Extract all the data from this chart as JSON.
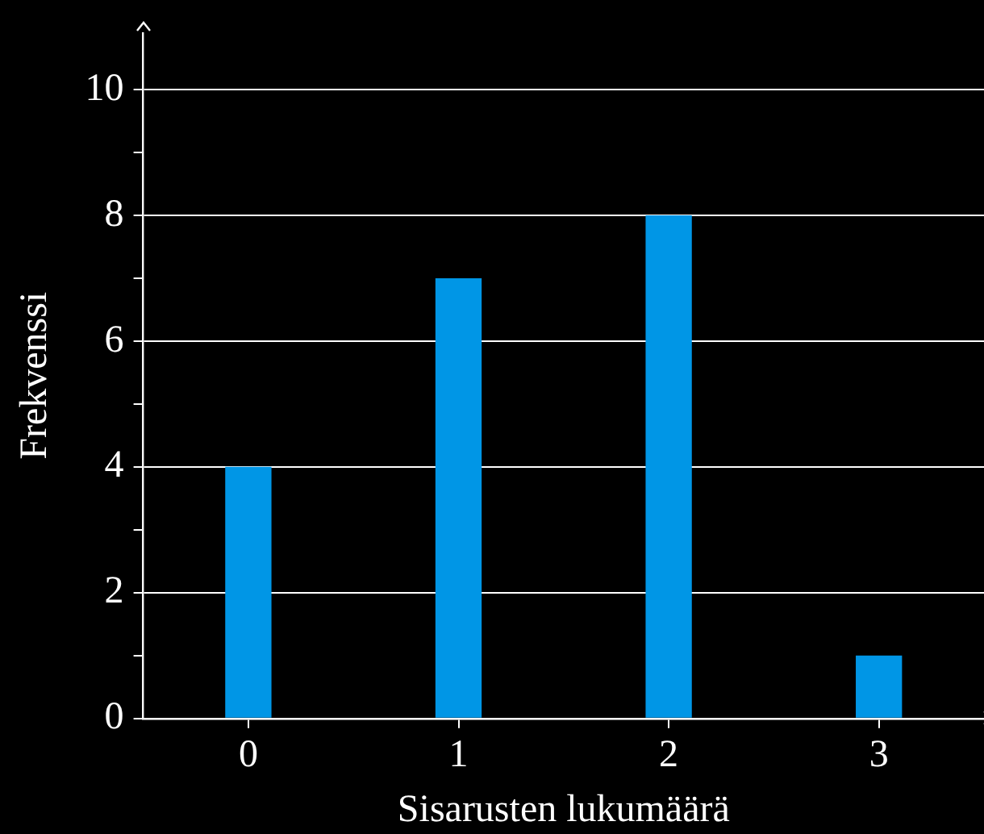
{
  "chart_data": {
    "type": "bar",
    "xlabel": "Sisarusten lukumäärä",
    "ylabel": "Frekvenssi",
    "categories": [
      "0",
      "1",
      "2",
      "3"
    ],
    "values": [
      4,
      7,
      8,
      1
    ],
    "color": "#0096e6",
    "ylim": [
      0,
      10.9
    ],
    "yticks": [
      0,
      {
        "value": 1,
        "label": null
      },
      2,
      {
        "value": 3,
        "label": null
      },
      4,
      {
        "value": 5,
        "label": null
      },
      6,
      {
        "value": 7,
        "label": null
      },
      8,
      {
        "value": 9,
        "label": null
      },
      10
    ],
    "grid": "y"
  }
}
